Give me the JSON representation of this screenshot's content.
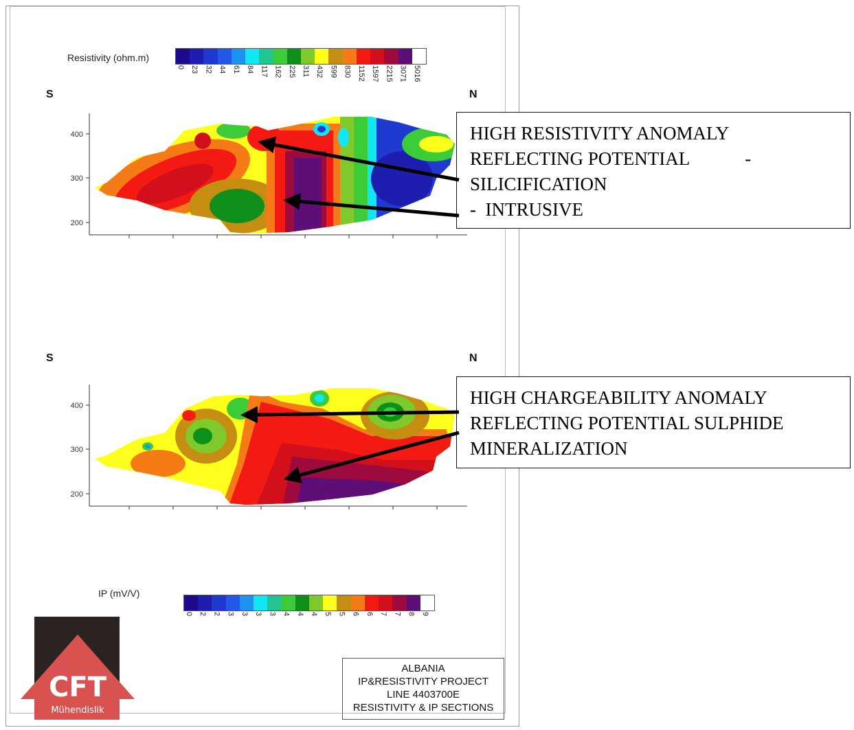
{
  "resistivity_legend": {
    "label": "Resistivity (ohm.m)",
    "ticks": [
      "0",
      "23",
      "32",
      "44",
      "61",
      "84",
      "117",
      "162",
      "225",
      "311",
      "432",
      "599",
      "830",
      "1152",
      "1597",
      "2215",
      "3071",
      "5016"
    ],
    "colors": [
      "#1c0a8c",
      "#1d1eb0",
      "#1f3ad1",
      "#2258e8",
      "#1c93f0",
      "#11e6f2",
      "#22c48f",
      "#3ccc3a",
      "#0e8f1a",
      "#7fc92c",
      "#ffff1e",
      "#c58e12",
      "#f57b16",
      "#f21a12",
      "#d2101c",
      "#9c0a3e",
      "#5e0f77",
      "#ffffff"
    ]
  },
  "ip_legend": {
    "label": "IP (mV/V)",
    "ticks": [
      "0",
      "2",
      "2",
      "3",
      "3",
      "3",
      "3",
      "4",
      "4",
      "4",
      "5",
      "5",
      "6",
      "6",
      "7",
      "7",
      "8",
      "9"
    ],
    "colors": [
      "#1c0a8c",
      "#1d1eb0",
      "#1f3ad1",
      "#2258e8",
      "#1c93f0",
      "#11e6f2",
      "#22c48f",
      "#3ccc3a",
      "#0e8f1a",
      "#7fc92c",
      "#ffff1e",
      "#c58e12",
      "#f57b16",
      "#f21a12",
      "#d2101c",
      "#9c0a3e",
      "#5e0f77",
      "#ffffff"
    ]
  },
  "sections": [
    {
      "left_dir": "S",
      "right_dir": "N",
      "y_ticks": [
        "400",
        "300",
        "200"
      ]
    },
    {
      "left_dir": "S",
      "right_dir": "N",
      "y_ticks": [
        "400",
        "300",
        "200"
      ]
    }
  ],
  "callouts": [
    {
      "lines": [
        "HIGH RESISTIVITY ANOMALY",
        "REFLECTING POTENTIAL            -",
        "SILICIFICATION",
        "-  INTRUSIVE"
      ]
    },
    {
      "lines": [
        "HIGH CHARGEABILITY ANOMALY",
        "REFLECTING POTENTIAL SULPHIDE",
        "MINERALIZATION"
      ]
    }
  ],
  "title_block": {
    "lines": [
      "ALBANIA",
      "IP&RESISTIVITY PROJECT",
      "LINE 4403700E",
      "RESISTIVITY & IP SECTIONS"
    ]
  },
  "logo": {
    "text": "CFT",
    "subtext": "Mühendislik",
    "fill": "#d8534f",
    "background": "#2a2321"
  }
}
